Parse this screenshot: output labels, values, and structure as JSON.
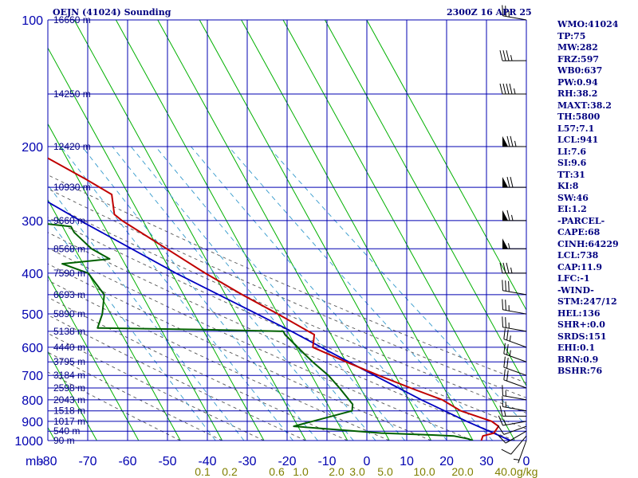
{
  "header": {
    "station": "OEJN (41024) Sounding",
    "datetime": "2300Z 16 APR 25"
  },
  "chart_data": {
    "type": "skew-t",
    "pressure_axis": {
      "unit_label": "mb",
      "levels": [
        100,
        200,
        300,
        400,
        500,
        600,
        700,
        800,
        900,
        1000
      ]
    },
    "temperature_axis": {
      "ticks": [
        -80,
        -70,
        -60,
        -50,
        -40,
        -30,
        -20,
        -10,
        0,
        10,
        20,
        30
      ],
      "range": [
        -80,
        30
      ]
    },
    "mixing_ratio_labels": [
      "0.1",
      "0.2",
      "0.6",
      "1.0",
      "2.0",
      "3.0",
      "5.0",
      "10.0",
      "20.0",
      "40.0"
    ],
    "mixing_ratio_unit": "g/kg",
    "height_labels": [
      {
        "p": 100,
        "label": "16660 m"
      },
      {
        "p": 150,
        "label": "14250 m"
      },
      {
        "p": 200,
        "label": "12420 m"
      },
      {
        "p": 250,
        "label": "10930 m"
      },
      {
        "p": 300,
        "label": "9660 m"
      },
      {
        "p": 350,
        "label": "8568 m"
      },
      {
        "p": 400,
        "label": "7590 m"
      },
      {
        "p": 450,
        "label": "6693 m"
      },
      {
        "p": 500,
        "label": "5890 m"
      },
      {
        "p": 550,
        "label": "5138 m"
      },
      {
        "p": 600,
        "label": "4440 m"
      },
      {
        "p": 650,
        "label": "3795 m"
      },
      {
        "p": 700,
        "label": "3184 m"
      },
      {
        "p": 750,
        "label": "2598 m"
      },
      {
        "p": 800,
        "label": "2043 m"
      },
      {
        "p": 850,
        "label": "1518 m"
      },
      {
        "p": 900,
        "label": "1017 m"
      },
      {
        "p": 950,
        "label": "540 m"
      },
      {
        "p": 1000,
        "label": "90 m"
      }
    ],
    "temperature_profile": [
      [
        1000,
        22
      ],
      [
        975,
        23
      ],
      [
        960,
        26
      ],
      [
        925,
        28
      ],
      [
        900,
        27
      ],
      [
        850,
        21
      ],
      [
        800,
        18
      ],
      [
        750,
        12
      ],
      [
        700,
        6
      ],
      [
        650,
        0
      ],
      [
        600,
        -6
      ],
      [
        560,
        -4
      ],
      [
        550,
        -5
      ],
      [
        500,
        -10
      ],
      [
        450,
        -16
      ],
      [
        400,
        -22
      ],
      [
        350,
        -28
      ],
      [
        300,
        -35
      ],
      [
        290,
        -36
      ],
      [
        260,
        -34
      ],
      [
        240,
        -38
      ],
      [
        200,
        -48
      ],
      [
        180,
        -49
      ],
      [
        165,
        -51
      ],
      [
        160,
        -52
      ],
      [
        140,
        -54
      ],
      [
        120,
        -60
      ],
      [
        100,
        -62
      ]
    ],
    "dewpoint_profile": [
      [
        1000,
        20
      ],
      [
        990,
        19
      ],
      [
        975,
        16
      ],
      [
        970,
        11
      ],
      [
        960,
        -1
      ],
      [
        925,
        -21
      ],
      [
        850,
        -5
      ],
      [
        820,
        -4
      ],
      [
        750,
        -5
      ],
      [
        700,
        -6
      ],
      [
        650,
        -8
      ],
      [
        620,
        -9
      ],
      [
        560,
        -11
      ],
      [
        550,
        -11
      ],
      [
        545,
        -30
      ],
      [
        540,
        -55
      ],
      [
        500,
        -52
      ],
      [
        450,
        -49
      ],
      [
        400,
        -50
      ],
      [
        380,
        -55
      ],
      [
        370,
        -43
      ],
      [
        350,
        -46
      ],
      [
        320,
        -48
      ],
      [
        310,
        -48
      ],
      [
        300,
        -60
      ],
      [
        250,
        -66
      ],
      [
        200,
        -70
      ],
      [
        175,
        -71
      ],
      [
        160,
        -72
      ],
      [
        140,
        -73
      ],
      [
        100,
        -73
      ]
    ],
    "parcel_profile": [
      [
        1000,
        29
      ],
      [
        900,
        21
      ],
      [
        800,
        13
      ],
      [
        700,
        5
      ],
      [
        600,
        -4
      ],
      [
        550,
        -9
      ],
      [
        500,
        -15
      ],
      [
        400,
        -29
      ],
      [
        300,
        -45
      ],
      [
        200,
        -66
      ],
      [
        140,
        -81
      ]
    ],
    "wind_barbs": [
      {
        "p": 1000,
        "dir": 200,
        "spd": 5
      },
      {
        "p": 975,
        "dir": 220,
        "spd": 10
      },
      {
        "p": 950,
        "dir": 240,
        "spd": 10
      },
      {
        "p": 925,
        "dir": 250,
        "spd": 10
      },
      {
        "p": 900,
        "dir": 260,
        "spd": 15
      },
      {
        "p": 875,
        "dir": 270,
        "spd": 15
      },
      {
        "p": 850,
        "dir": 280,
        "spd": 15
      },
      {
        "p": 800,
        "dir": 280,
        "spd": 15
      },
      {
        "p": 750,
        "dir": 290,
        "spd": 20
      },
      {
        "p": 700,
        "dir": 290,
        "spd": 20
      },
      {
        "p": 650,
        "dir": 290,
        "spd": 25
      },
      {
        "p": 600,
        "dir": 290,
        "spd": 25
      },
      {
        "p": 550,
        "dir": 280,
        "spd": 25
      },
      {
        "p": 500,
        "dir": 280,
        "spd": 25
      },
      {
        "p": 450,
        "dir": 280,
        "spd": 30
      },
      {
        "p": 400,
        "dir": 270,
        "spd": 35
      },
      {
        "p": 350,
        "dir": 270,
        "spd": 55
      },
      {
        "p": 300,
        "dir": 270,
        "spd": 65
      },
      {
        "p": 250,
        "dir": 270,
        "spd": 70
      },
      {
        "p": 200,
        "dir": 270,
        "spd": 75
      },
      {
        "p": 150,
        "dir": 270,
        "spd": 45
      },
      {
        "p": 125,
        "dir": 270,
        "spd": 35
      },
      {
        "p": 100,
        "dir": 280,
        "spd": 25
      }
    ],
    "colors": {
      "isobar": "#0000b0",
      "isotherm": "#00b000",
      "dry_adiabat": "#555555",
      "mixing_ratio": "#3399cc",
      "temperature": "#c00000",
      "dewpoint": "#006000",
      "parcel": "#0000c0",
      "barb": "#000000"
    }
  },
  "indices": [
    "WMO:41024",
    "TP:75",
    "MW:282",
    "FRZ:597",
    "WB0:637",
    "PW:0.94",
    "RH:38.2",
    "MAXT:38.2",
    "TH:5800",
    "L57:7.1",
    "LCL:941",
    "LI:7.6",
    "SI:9.6",
    "TT:31",
    "KI:8",
    "SW:46",
    "EI:1.2",
    "-PARCEL-",
    "CAPE:68",
    "CINH:64229",
    "LCL:738",
    "CAP:11.9",
    "LFC:-1",
    "-WIND-",
    "STM:247/12",
    "HEL:136",
    "SHR+:0.0",
    "SRDS:151",
    "EHI:0.1",
    "BRN:0.9",
    "BSHR:76"
  ]
}
